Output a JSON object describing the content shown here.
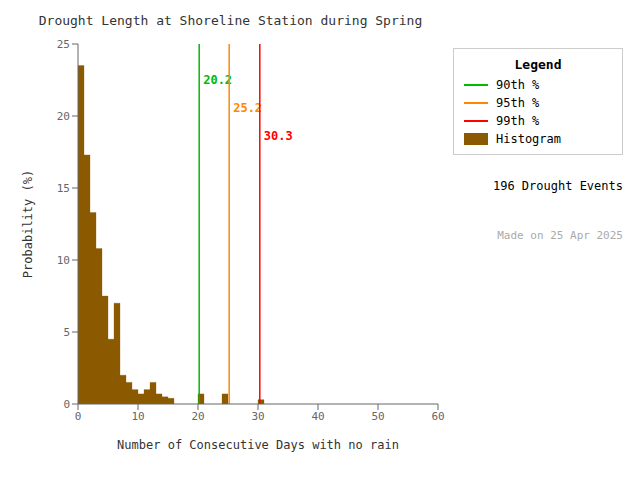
{
  "chart_data": {
    "type": "histogram",
    "title": "Drought Length at Shoreline Station during Spring",
    "x_label": "Number of Consecutive Days with no rain",
    "y_label": "Probability (%)",
    "name": "Histogram",
    "color": "#8B5A00",
    "bins": [
      0,
      1,
      2,
      3,
      4,
      5,
      6,
      7,
      8,
      9,
      10,
      11,
      12,
      13,
      14,
      15,
      16,
      17,
      18,
      19,
      20,
      21,
      22,
      23,
      24,
      25,
      26,
      27,
      28,
      29,
      30,
      31,
      32,
      33,
      34,
      35,
      36,
      37,
      38,
      39,
      40,
      41,
      42,
      43,
      44,
      45,
      46,
      47,
      48,
      49,
      50,
      51,
      52,
      53,
      54,
      55,
      56,
      57,
      58,
      59,
      60
    ],
    "values": [
      23.5,
      17.3,
      13.3,
      10.8,
      7.5,
      4.5,
      7.0,
      2.0,
      1.5,
      1.0,
      0.7,
      1.0,
      1.5,
      0.7,
      0.5,
      0.4,
      0.0,
      0.0,
      0.0,
      0.0,
      0.7,
      0.0,
      0.0,
      0.0,
      0.7,
      0.0,
      0.0,
      0.0,
      0.0,
      0.0,
      0.3,
      0.0,
      0.0,
      0.0,
      0.0,
      0.0,
      0.0,
      0.0,
      0.0,
      0.0,
      0.0,
      0.0,
      0.0,
      0.0,
      0.0,
      0.0,
      0.0,
      0.0,
      0.0,
      0.0,
      0.0,
      0.0,
      0.0,
      0.0,
      0.0,
      0.0,
      0.0,
      0.0,
      0.0,
      0.0
    ],
    "xlim": [
      0,
      60
    ],
    "ylim": [
      0,
      25
    ],
    "xticks": [
      0,
      10,
      20,
      30,
      40,
      50,
      60
    ],
    "yticks": [
      0,
      5,
      10,
      15,
      20,
      25
    ],
    "vlines": [
      {
        "name": "90th %",
        "x": 20.2,
        "label": "20.2",
        "color": "#00bb00"
      },
      {
        "name": "95th %",
        "x": 25.2,
        "label": "25.2",
        "color": "#ff8800"
      },
      {
        "name": "99th %",
        "x": 30.3,
        "label": "30.3",
        "color": "#ff0000"
      }
    ],
    "legend": "right",
    "legend_title": "Legend",
    "grid": false,
    "annotations": [
      {
        "text": "196 Drought Events",
        "color": "#000000"
      },
      {
        "text": "Made on 25 Apr 2025",
        "color": "#aaaaaa"
      }
    ]
  }
}
